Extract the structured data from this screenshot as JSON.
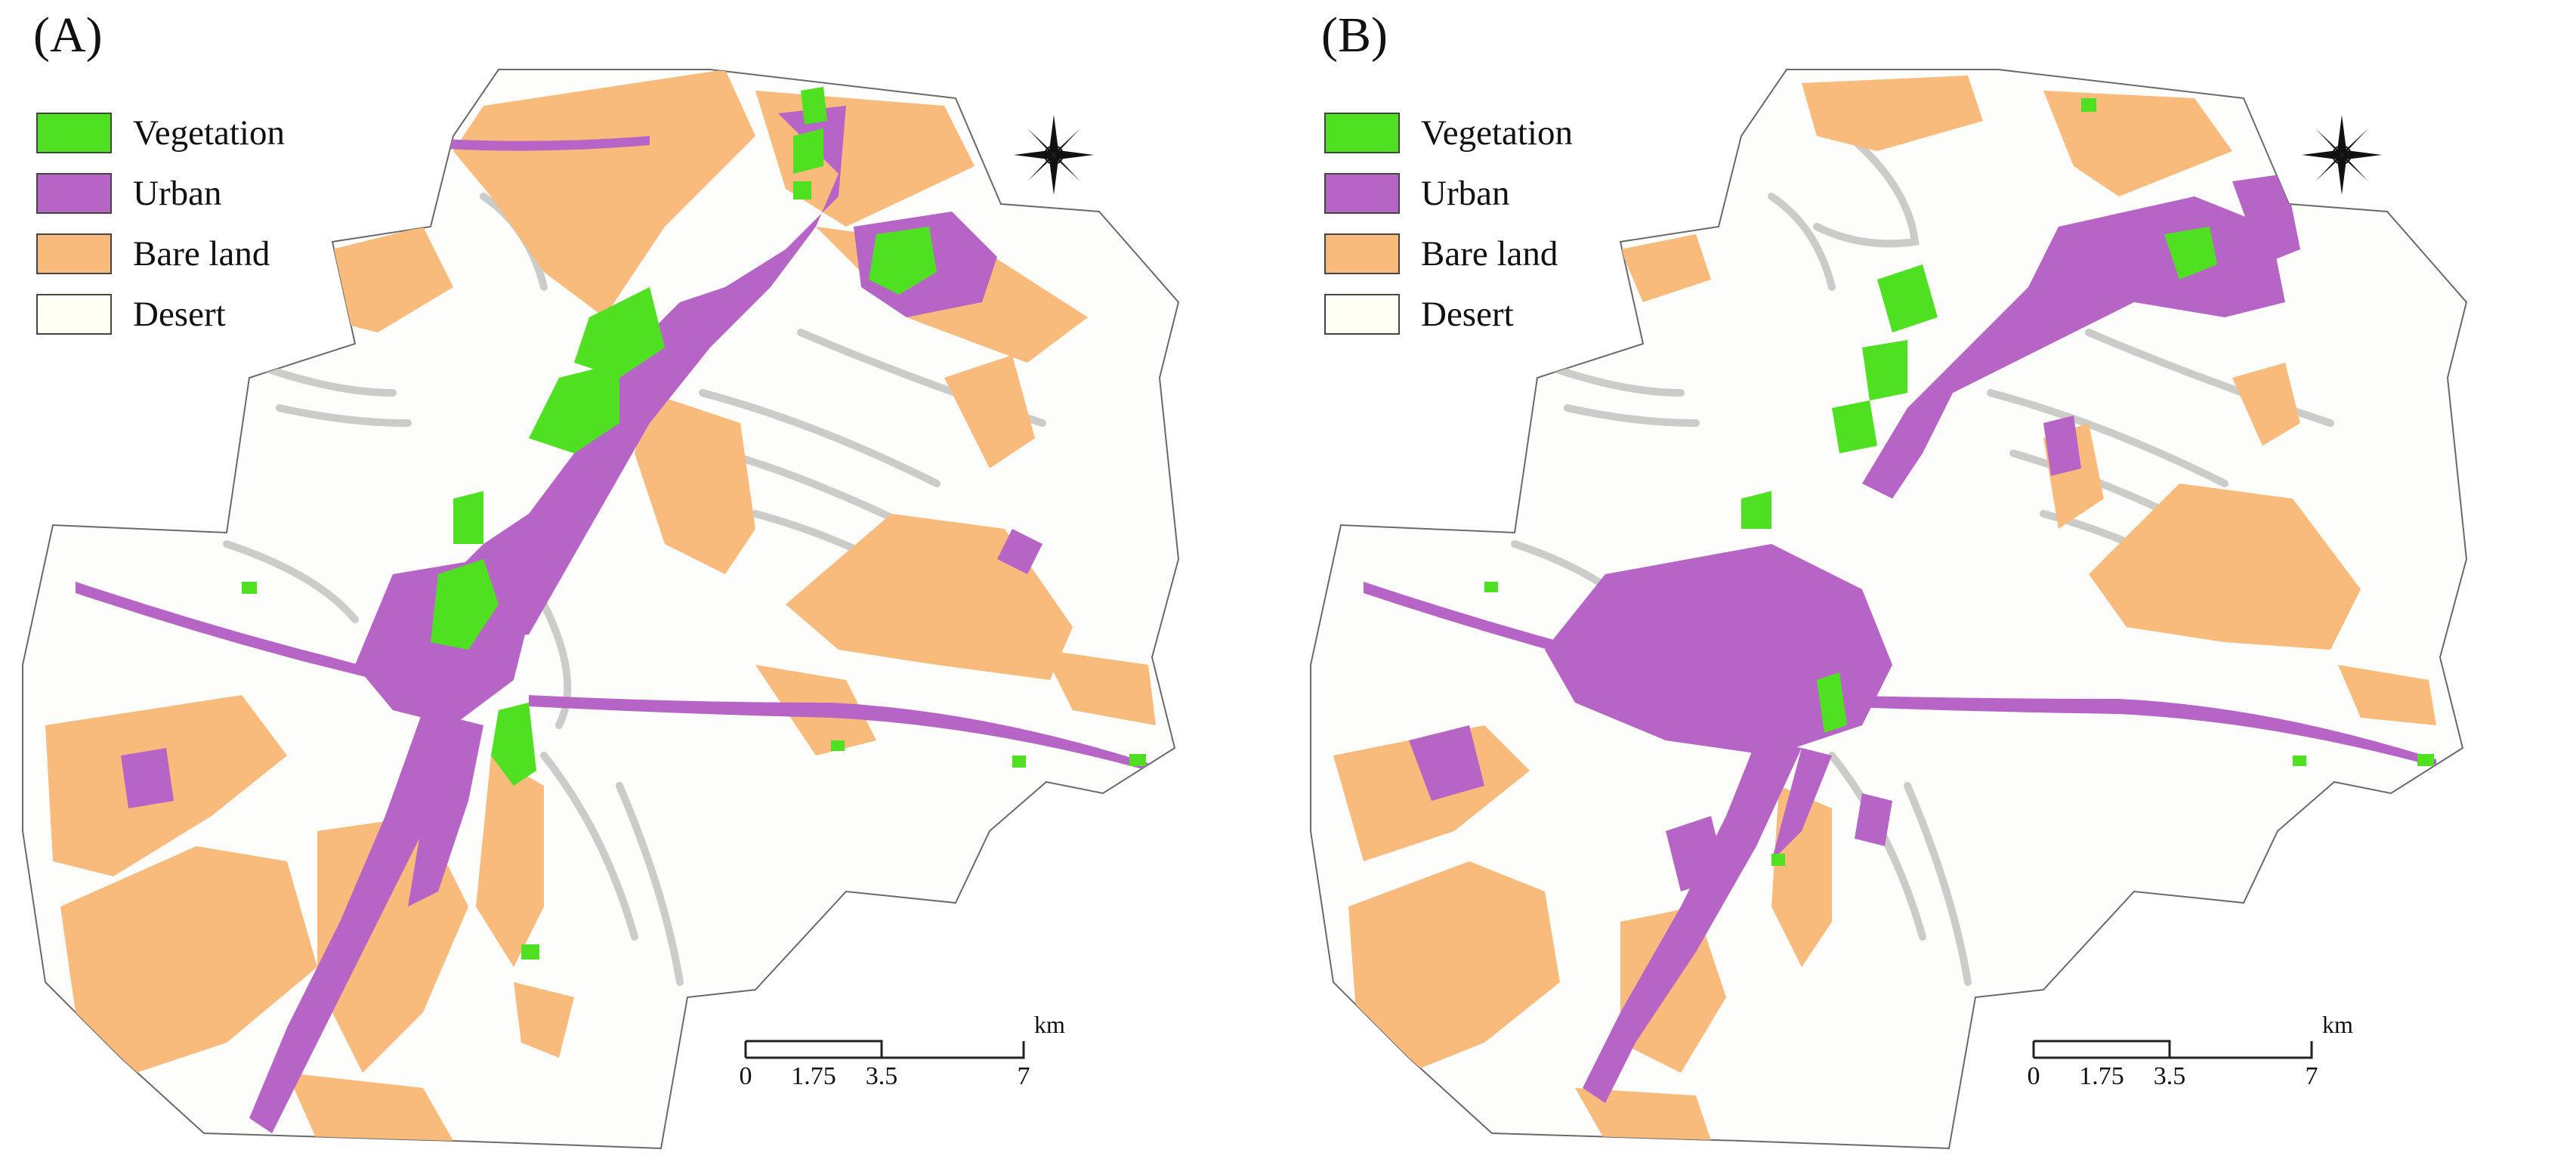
{
  "panels": [
    {
      "label": "(A)",
      "legend": [
        {
          "label": "Vegetation",
          "color": "#4fe021"
        },
        {
          "label": "Urban",
          "color": "#b665c6"
        },
        {
          "label": "Bare land",
          "color": "#f9bb7c"
        },
        {
          "label": "Desert",
          "color": "#fffff4"
        }
      ],
      "scale_bar": {
        "ticks": [
          "0",
          "1.75",
          "3.5",
          "7"
        ],
        "unit": "km"
      },
      "north_arrow": "compass-rose-icon"
    },
    {
      "label": "(B)",
      "legend": [
        {
          "label": "Vegetation",
          "color": "#4fe021"
        },
        {
          "label": "Urban",
          "color": "#b665c6"
        },
        {
          "label": "Bare land",
          "color": "#f9bb7c"
        },
        {
          "label": "Desert",
          "color": "#fffff4"
        }
      ],
      "scale_bar": {
        "ticks": [
          "0",
          "1.75",
          "3.5",
          "7"
        ],
        "unit": "km"
      },
      "north_arrow": "compass-rose-icon"
    }
  ],
  "colors": {
    "terrain": "#e9e9e7",
    "hillshade": "#c9c9c6",
    "outline": "#555555"
  }
}
